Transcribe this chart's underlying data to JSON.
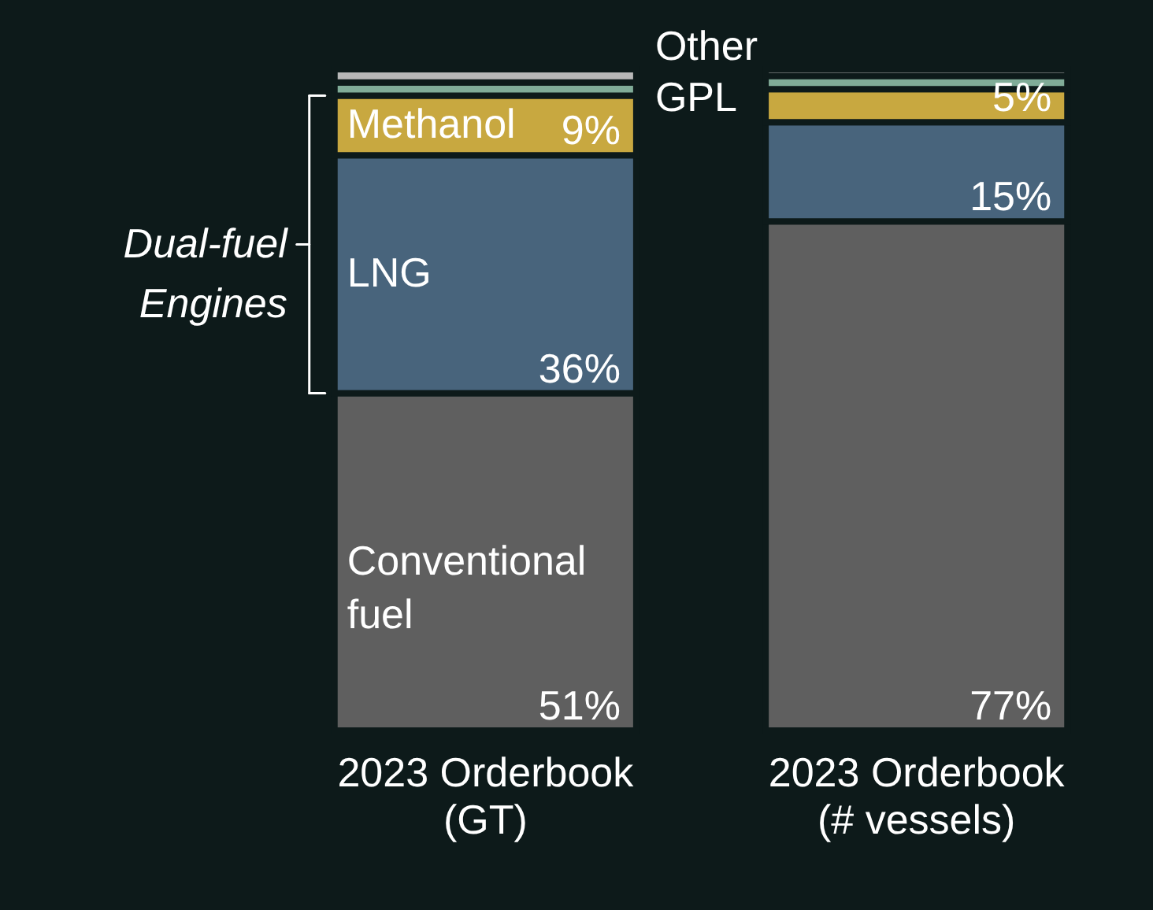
{
  "chart_data": {
    "type": "bar",
    "stacked": true,
    "categories": [
      "2023 Orderbook (GT)",
      "2023 Orderbook (# vessels)"
    ],
    "series": [
      {
        "name": "Conventional fuel",
        "color": "#5f5f5f",
        "values": [
          51,
          77
        ],
        "value_labels": [
          "51%",
          "77%"
        ]
      },
      {
        "name": "LNG",
        "color": "#48647c",
        "values": [
          36,
          15
        ],
        "value_labels": [
          "36%",
          "15%"
        ]
      },
      {
        "name": "Methanol",
        "color": "#c8a840",
        "values": [
          9,
          5
        ],
        "value_labels": [
          "9%",
          "5%"
        ]
      },
      {
        "name": "GPL",
        "color": "#80ac98",
        "values": [
          2,
          2
        ],
        "value_labels": [
          null,
          null
        ]
      },
      {
        "name": "Other",
        "color": "#b8b8b8",
        "values": [
          2,
          1
        ],
        "value_labels": [
          null,
          null
        ]
      }
    ],
    "annotations": [
      "Dual-fuel Engines"
    ]
  }
}
